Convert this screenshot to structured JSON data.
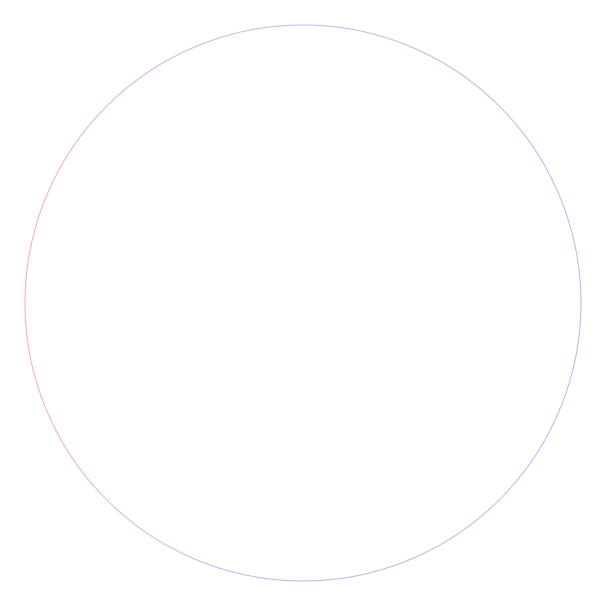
{
  "shape": {
    "type": "circle-outline",
    "colors": {
      "left": "#f0a8d8",
      "top": "#c0b8ec",
      "right": "#a8bcf4",
      "background": "#ffffff"
    }
  }
}
